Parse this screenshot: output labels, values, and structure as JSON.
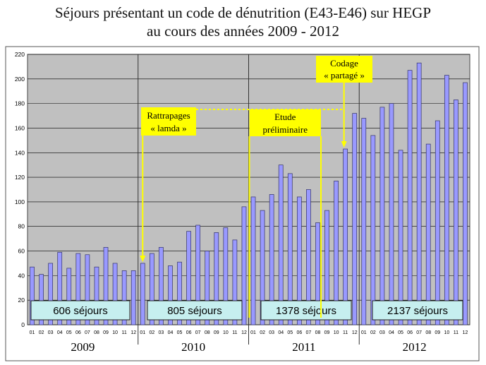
{
  "title_line1": "Séjours présentant un code de dénutrition (E43-E46) sur HEGP",
  "title_line2": "au cours des années 2009 - 2012",
  "chart_data": {
    "type": "bar",
    "title": "Séjours présentant un code de dénutrition (E43-E46) sur HEGP au cours des années 2009 - 2012",
    "xlabel": "",
    "ylabel": "",
    "ylim": [
      0,
      220
    ],
    "yticks": [
      0,
      20,
      40,
      60,
      80,
      100,
      120,
      140,
      160,
      180,
      200,
      220
    ],
    "grid": true,
    "legend": "none",
    "month_labels": [
      "01",
      "02",
      "03",
      "04",
      "05",
      "06",
      "07",
      "08",
      "09",
      "10",
      "11",
      "12"
    ],
    "years": [
      "2009",
      "2010",
      "2011",
      "2012"
    ],
    "values": [
      47,
      41,
      50,
      59,
      46,
      58,
      57,
      47,
      63,
      50,
      44,
      44,
      50,
      58,
      63,
      48,
      51,
      76,
      81,
      60,
      75,
      79,
      69,
      96,
      104,
      93,
      106,
      130,
      123,
      104,
      110,
      83,
      93,
      117,
      143,
      172,
      168,
      154,
      177,
      180,
      142,
      207,
      213,
      147,
      166,
      203,
      183,
      197
    ],
    "year_totals": [
      "606 séjours",
      "805 séjours",
      "1378 séjours",
      "2137 séjours"
    ],
    "annotations": [
      {
        "text_lines": [
          "Rattrapages",
          "« lamda »"
        ],
        "month_index": 12
      },
      {
        "text_lines": [
          "Etude",
          "préliminaire"
        ],
        "start_month_index": 24,
        "end_month_index": 31
      },
      {
        "text_lines": [
          "Codage",
          "« partagé »"
        ],
        "month_index": 34
      }
    ],
    "colors": {
      "plot_bg": "#c0c0c0",
      "bar_fill": "#9999ff",
      "bar_stroke": "#333366",
      "annotation_bg": "#ffff00",
      "annotation_line": "#ffff00",
      "total_box_bg": "#c6efef"
    }
  }
}
